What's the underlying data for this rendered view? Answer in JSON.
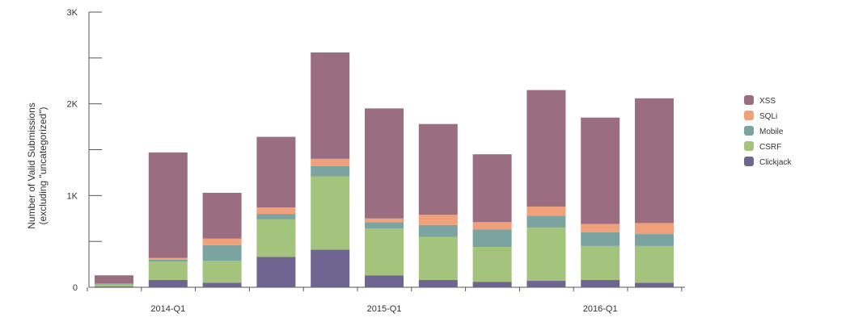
{
  "chart_data": {
    "type": "bar",
    "stacked": true,
    "ylabel_lines": [
      "Number of Valid Submissions",
      "(excluding \"uncategorized\")"
    ],
    "y_ticks": [
      "0",
      "1K",
      "2K",
      "3K"
    ],
    "ylim": [
      0,
      3000
    ],
    "x_tick_labels": [
      {
        "label": "2014-Q1",
        "index": 2
      },
      {
        "label": "2015-Q1",
        "index": 6
      },
      {
        "label": "2016-Q1",
        "index": 10
      }
    ],
    "legend_position": "right",
    "series": [
      {
        "name": "Clickjack",
        "color": "#6e6690",
        "values": [
          10,
          80,
          50,
          330,
          410,
          130,
          80,
          60,
          70,
          80,
          50
        ]
      },
      {
        "name": "CSRF",
        "color": "#a4c37c",
        "values": [
          20,
          200,
          240,
          410,
          800,
          510,
          470,
          380,
          580,
          370,
          400
        ]
      },
      {
        "name": "Mobile",
        "color": "#7ba39f",
        "values": [
          5,
          20,
          170,
          60,
          110,
          70,
          130,
          190,
          130,
          150,
          130
        ]
      },
      {
        "name": "SQLi",
        "color": "#f0a07a",
        "values": [
          5,
          20,
          70,
          70,
          80,
          40,
          110,
          80,
          100,
          90,
          120
        ]
      },
      {
        "name": "XSS",
        "color": "#9b6d80",
        "values": [
          90,
          1150,
          500,
          770,
          1160,
          1200,
          990,
          740,
          1270,
          1160,
          1360
        ]
      }
    ],
    "legend_order": [
      "XSS",
      "SQLi",
      "Mobile",
      "CSRF",
      "Clickjack"
    ]
  }
}
